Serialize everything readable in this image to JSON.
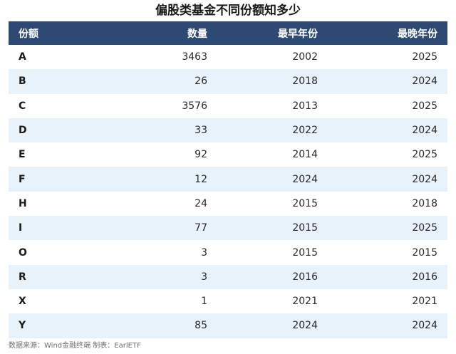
{
  "chart_data": {
    "type": "table",
    "title": "偏股类基金不同份额知多少",
    "columns": [
      "份额",
      "数量",
      "最早年份",
      "最晚年份"
    ],
    "rows": [
      [
        "A",
        "3463",
        "2002",
        "2025"
      ],
      [
        "B",
        "26",
        "2018",
        "2024"
      ],
      [
        "C",
        "3576",
        "2013",
        "2025"
      ],
      [
        "D",
        "33",
        "2022",
        "2024"
      ],
      [
        "E",
        "92",
        "2014",
        "2025"
      ],
      [
        "F",
        "12",
        "2024",
        "2024"
      ],
      [
        "H",
        "24",
        "2015",
        "2018"
      ],
      [
        "I",
        "77",
        "2015",
        "2025"
      ],
      [
        "O",
        "3",
        "2015",
        "2015"
      ],
      [
        "R",
        "3",
        "2016",
        "2016"
      ],
      [
        "X",
        "1",
        "2021",
        "2021"
      ],
      [
        "Y",
        "85",
        "2024",
        "2024"
      ]
    ],
    "source": "数据来源：Wind金融终端 制表：EarlETF",
    "colors": {
      "header_bg": "#2e4a73",
      "header_text": "#ffffff",
      "row_alt_bg": "#e8f2fb"
    }
  }
}
